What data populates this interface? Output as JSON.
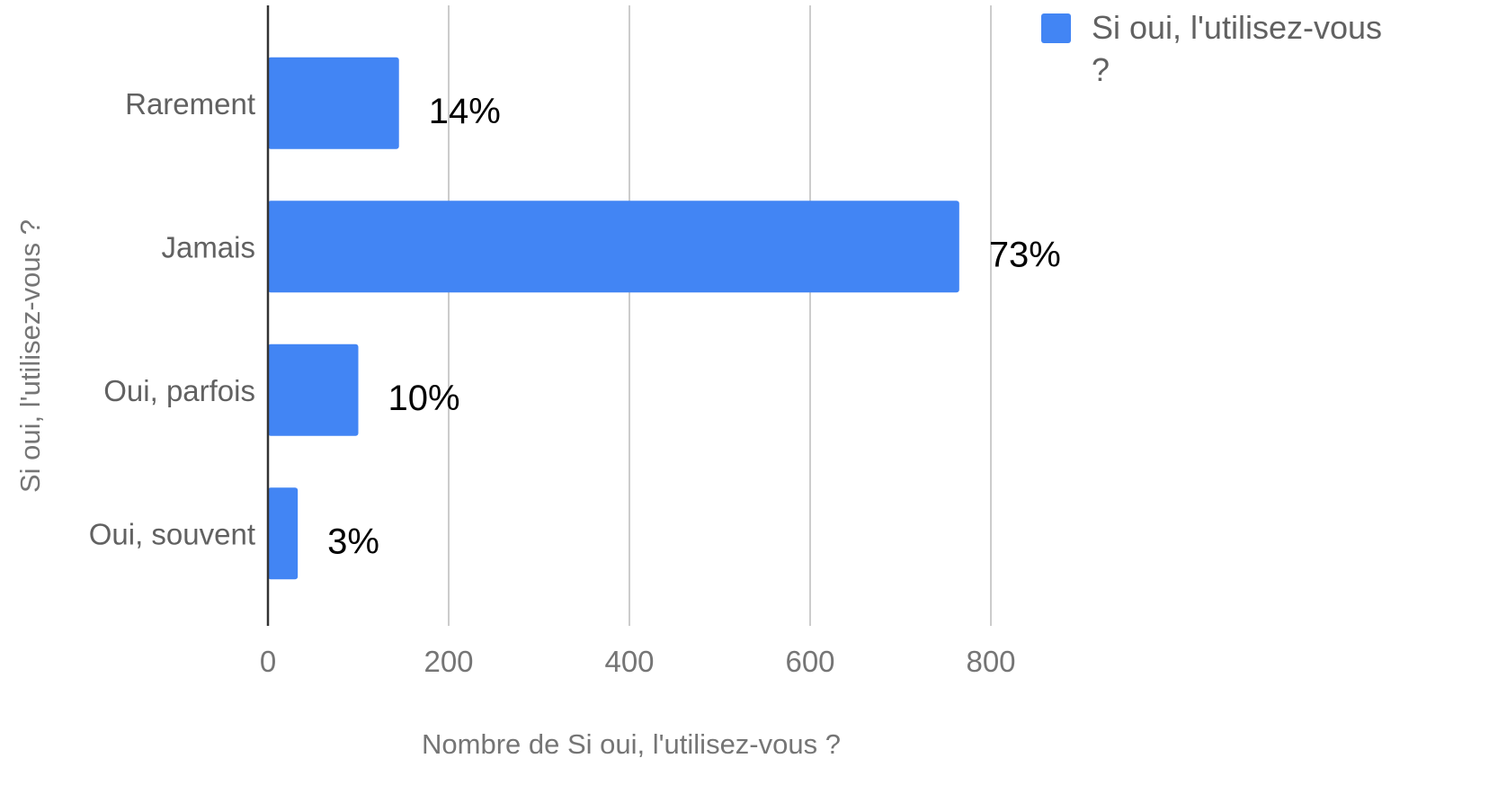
{
  "chart_data": {
    "type": "bar",
    "orientation": "horizontal",
    "categories": [
      "Rarement",
      "Jamais",
      "Oui, parfois",
      "Oui, souvent"
    ],
    "series": [
      {
        "name": "Si oui, l'utilisez-vous ?",
        "values": [
          145,
          765,
          100,
          33
        ],
        "data_labels": [
          "14%",
          "73%",
          "10%",
          "3%"
        ],
        "color": "#4285f4"
      }
    ],
    "xlabel": "Nombre de Si oui, l'utilisez-vous ?",
    "ylabel": "Si oui, l'utilisez-vous ?",
    "xlim": [
      0,
      800
    ],
    "xticks": [
      0,
      200,
      400,
      600,
      800
    ],
    "tick_labels": [
      "0",
      "200",
      "400",
      "600",
      "800"
    ],
    "grid": true,
    "legend": {
      "position": "top-right",
      "lines": [
        "Si oui, l'utilisez-vous",
        "?"
      ]
    },
    "colors": {
      "bar": "#4285f4",
      "gridline": "#cccccc",
      "axis": "#333333"
    }
  }
}
